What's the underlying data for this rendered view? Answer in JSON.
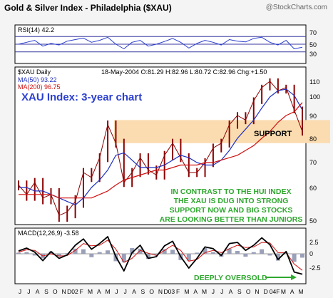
{
  "header": {
    "title": "Gold & Silver Index - Philadelphia ($XAU)",
    "watermark": "@StockCharts.com"
  },
  "rsi": {
    "label": "RSI(14) 42.2",
    "ticks": [
      "70",
      "50",
      "30"
    ]
  },
  "price": {
    "symbol_label": "$XAU Daily",
    "quote": "18-May-2004 O:81.29 H:82.96 L:80.72 C:82.96 Chg:+1.50",
    "ma50_label": "MA(50) 93.22",
    "ma200_label": "MA(200) 96.75",
    "headline": "XAU Index: 3-year chart",
    "support_label": "SUPPORT",
    "note_lines": [
      "IN CONTRAST TO THE HUI INDEX",
      "THE XAU IS DUG INTO STRONG",
      "SUPPORT NOW AND BIG STOCKS",
      "ARE LOOKING BETTER THAN JUNIORS"
    ],
    "ticks": [
      "110",
      "100",
      "90",
      "80",
      "70",
      "60",
      "50"
    ]
  },
  "macd": {
    "label": "MACD(12,26,9) -3.58",
    "ticks": [
      "2.5",
      "0",
      "-2.5"
    ],
    "annotation": "DEEPLY OVERSOLD"
  },
  "months": [
    "J",
    "J",
    "A",
    "S",
    "O",
    "N",
    "D02",
    "F",
    "M",
    "A",
    "M",
    "J",
    "J",
    "A",
    "S",
    "O",
    "N",
    "D03",
    "F",
    "M",
    "A",
    "M",
    "J",
    "J",
    "A",
    "S",
    "O",
    "N",
    "D",
    "04F",
    "M",
    "A",
    "M"
  ],
  "colors": {
    "price": "#8b0000",
    "ma50": "#1f2fbf",
    "ma200": "#d01010",
    "headline": "#2b3fcf",
    "note": "#2ea82e",
    "support_band": "#fbdcb0"
  },
  "chart_data": [
    {
      "type": "line",
      "title": "RSI(14) 42.2",
      "ylim": [
        0,
        100
      ],
      "gridlines": [
        30,
        50,
        70
      ],
      "x": [
        "2001-06",
        "2001-07",
        "2001-08",
        "2001-09",
        "2001-10",
        "2001-11",
        "2001-12",
        "2002-01",
        "2002-02",
        "2002-03",
        "2002-04",
        "2002-05",
        "2002-06",
        "2002-07",
        "2002-08",
        "2002-09",
        "2002-10",
        "2002-11",
        "2002-12",
        "2003-01",
        "2003-02",
        "2003-03",
        "2003-04",
        "2003-05",
        "2003-06",
        "2003-07",
        "2003-08",
        "2003-09",
        "2003-10",
        "2003-11",
        "2003-12",
        "2004-01",
        "2004-02",
        "2004-03",
        "2004-04",
        "2004-05"
      ],
      "series": [
        {
          "name": "RSI(14)",
          "values": [
            50,
            55,
            60,
            45,
            52,
            48,
            58,
            62,
            66,
            55,
            60,
            68,
            50,
            38,
            55,
            60,
            45,
            50,
            57,
            65,
            55,
            40,
            52,
            60,
            55,
            48,
            62,
            58,
            56,
            65,
            68,
            55,
            48,
            60,
            38,
            42
          ]
        }
      ]
    },
    {
      "type": "line",
      "title": "$XAU Daily",
      "ylim": [
        45,
        115
      ],
      "support_band": [
        78,
        88
      ],
      "x": [
        "2001-06",
        "2001-07",
        "2001-08",
        "2001-09",
        "2001-10",
        "2001-11",
        "2001-12",
        "2002-01",
        "2002-02",
        "2002-03",
        "2002-04",
        "2002-05",
        "2002-06",
        "2002-07",
        "2002-08",
        "2002-09",
        "2002-10",
        "2002-11",
        "2002-12",
        "2003-01",
        "2003-02",
        "2003-03",
        "2003-04",
        "2003-05",
        "2003-06",
        "2003-07",
        "2003-08",
        "2003-09",
        "2003-10",
        "2003-11",
        "2003-12",
        "2004-01",
        "2004-02",
        "2004-03",
        "2004-04",
        "2004-05"
      ],
      "series": [
        {
          "name": "$XAU Daily",
          "values": [
            61,
            58,
            62,
            57,
            58,
            52,
            53,
            56,
            66,
            64,
            72,
            86,
            78,
            62,
            66,
            72,
            67,
            65,
            73,
            78,
            72,
            66,
            66,
            70,
            76,
            78,
            86,
            90,
            88,
            98,
            106,
            110,
            104,
            106,
            93,
            83
          ]
        },
        {
          "name": "MA(50) 93.22",
          "values": [
            60,
            60,
            59,
            59,
            58,
            57,
            56,
            55,
            57,
            60,
            63,
            67,
            73,
            74,
            71,
            68,
            68,
            68,
            69,
            71,
            73,
            72,
            70,
            69,
            69,
            71,
            75,
            80,
            84,
            88,
            94,
            100,
            104,
            105,
            101,
            93
          ]
        },
        {
          "name": "MA(200) 96.75",
          "values": [
            58,
            58,
            58,
            58,
            58,
            57,
            57,
            57,
            57,
            57,
            58,
            59,
            61,
            63,
            64,
            65,
            66,
            67,
            67,
            68,
            69,
            69,
            69,
            70,
            70,
            71,
            72,
            73,
            75,
            77,
            80,
            83,
            87,
            90,
            92,
            97
          ]
        }
      ]
    },
    {
      "type": "line",
      "title": "MACD(12,26,9) -3.58",
      "ylim": [
        -4,
        4
      ],
      "x": [
        "2001-06",
        "2001-07",
        "2001-08",
        "2001-09",
        "2001-10",
        "2001-11",
        "2001-12",
        "2002-01",
        "2002-02",
        "2002-03",
        "2002-04",
        "2002-05",
        "2002-06",
        "2002-07",
        "2002-08",
        "2002-09",
        "2002-10",
        "2002-11",
        "2002-12",
        "2003-01",
        "2003-02",
        "2003-03",
        "2003-04",
        "2003-05",
        "2003-06",
        "2003-07",
        "2003-08",
        "2003-09",
        "2003-10",
        "2003-11",
        "2003-12",
        "2004-01",
        "2004-02",
        "2004-03",
        "2004-04",
        "2004-05"
      ],
      "series": [
        {
          "name": "MACD",
          "values": [
            0.5,
            1.0,
            0.3,
            -1.2,
            0.4,
            -0.8,
            -0.2,
            1.5,
            2.6,
            0.8,
            1.8,
            3.0,
            -0.5,
            -3.0,
            0.2,
            1.5,
            -0.8,
            -0.5,
            1.4,
            2.2,
            -0.5,
            -2.5,
            -0.8,
            1.2,
            0.9,
            -0.3,
            1.8,
            2.0,
            0.6,
            1.5,
            2.8,
            1.6,
            -1.0,
            0.4,
            -3.2,
            -3.58
          ]
        },
        {
          "name": "Signal",
          "values": [
            0.3,
            0.7,
            0.6,
            -0.4,
            0.0,
            -0.4,
            -0.3,
            0.6,
            1.8,
            1.4,
            1.5,
            2.4,
            0.8,
            -1.5,
            -0.8,
            0.6,
            0.1,
            -0.3,
            0.6,
            1.5,
            0.6,
            -1.3,
            -1.0,
            0.2,
            0.6,
            0.2,
            0.9,
            1.5,
            1.1,
            1.2,
            2.0,
            1.9,
            0.2,
            0.2,
            -1.8,
            -2.9
          ]
        }
      ]
    }
  ]
}
